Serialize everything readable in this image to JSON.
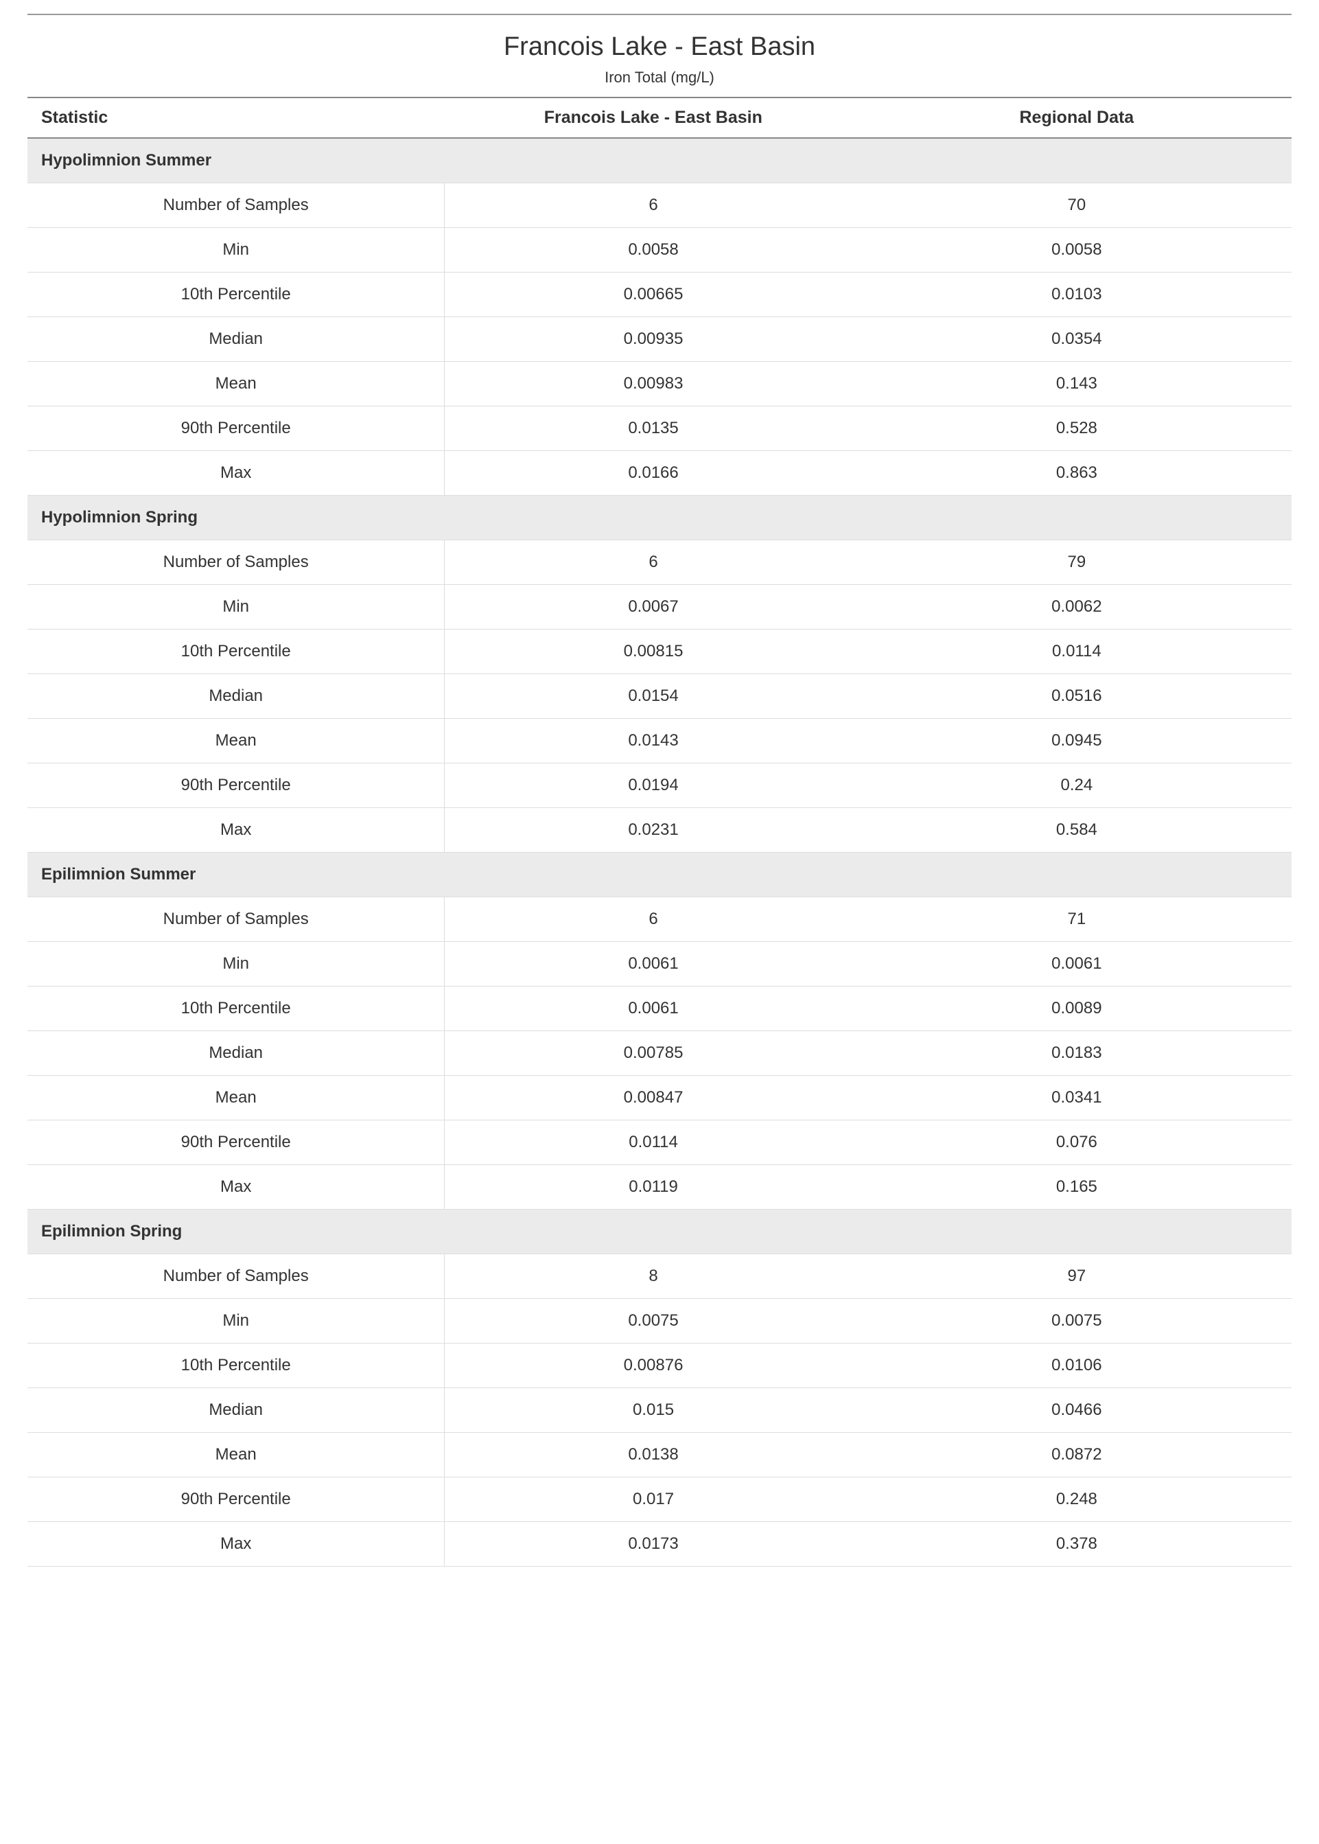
{
  "header": {
    "title": "Francois Lake - East Basin",
    "subtitle": "Iron Total (mg/L)"
  },
  "columns": {
    "stat": "Statistic",
    "site": "Francois Lake - East Basin",
    "region": "Regional Data"
  },
  "stat_labels": {
    "n": "Number of Samples",
    "min": "Min",
    "p10": "10th Percentile",
    "median": "Median",
    "mean": "Mean",
    "p90": "90th Percentile",
    "max": "Max"
  },
  "sections": [
    {
      "name": "Hypolimnion Summer",
      "rows": [
        {
          "label_key": "n",
          "site": "6",
          "region": "70"
        },
        {
          "label_key": "min",
          "site": "0.0058",
          "region": "0.0058"
        },
        {
          "label_key": "p10",
          "site": "0.00665",
          "region": "0.0103"
        },
        {
          "label_key": "median",
          "site": "0.00935",
          "region": "0.0354"
        },
        {
          "label_key": "mean",
          "site": "0.00983",
          "region": "0.143"
        },
        {
          "label_key": "p90",
          "site": "0.0135",
          "region": "0.528"
        },
        {
          "label_key": "max",
          "site": "0.0166",
          "region": "0.863"
        }
      ]
    },
    {
      "name": "Hypolimnion Spring",
      "rows": [
        {
          "label_key": "n",
          "site": "6",
          "region": "79"
        },
        {
          "label_key": "min",
          "site": "0.0067",
          "region": "0.0062"
        },
        {
          "label_key": "p10",
          "site": "0.00815",
          "region": "0.0114"
        },
        {
          "label_key": "median",
          "site": "0.0154",
          "region": "0.0516"
        },
        {
          "label_key": "mean",
          "site": "0.0143",
          "region": "0.0945"
        },
        {
          "label_key": "p90",
          "site": "0.0194",
          "region": "0.24"
        },
        {
          "label_key": "max",
          "site": "0.0231",
          "region": "0.584"
        }
      ]
    },
    {
      "name": "Epilimnion Summer",
      "rows": [
        {
          "label_key": "n",
          "site": "6",
          "region": "71"
        },
        {
          "label_key": "min",
          "site": "0.0061",
          "region": "0.0061"
        },
        {
          "label_key": "p10",
          "site": "0.0061",
          "region": "0.0089"
        },
        {
          "label_key": "median",
          "site": "0.00785",
          "region": "0.0183"
        },
        {
          "label_key": "mean",
          "site": "0.00847",
          "region": "0.0341"
        },
        {
          "label_key": "p90",
          "site": "0.0114",
          "region": "0.076"
        },
        {
          "label_key": "max",
          "site": "0.0119",
          "region": "0.165"
        }
      ]
    },
    {
      "name": "Epilimnion Spring",
      "rows": [
        {
          "label_key": "n",
          "site": "8",
          "region": "97"
        },
        {
          "label_key": "min",
          "site": "0.0075",
          "region": "0.0075"
        },
        {
          "label_key": "p10",
          "site": "0.00876",
          "region": "0.0106"
        },
        {
          "label_key": "median",
          "site": "0.015",
          "region": "0.0466"
        },
        {
          "label_key": "mean",
          "site": "0.0138",
          "region": "0.0872"
        },
        {
          "label_key": "p90",
          "site": "0.017",
          "region": "0.248"
        },
        {
          "label_key": "max",
          "site": "0.0173",
          "region": "0.378"
        }
      ]
    }
  ],
  "style": {
    "header_rule_color": "#999999",
    "row_border_color": "#dddddd",
    "section_bg": "#ebebeb",
    "stripe_bg": "#f7f7f7",
    "text_color": "#333333"
  }
}
